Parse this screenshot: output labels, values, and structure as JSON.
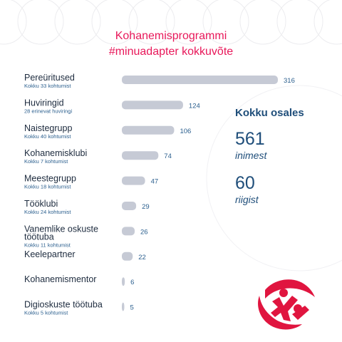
{
  "title": {
    "line1": "Kohanemisprogrammi",
    "line2": "#minuadapter kokkuvõte"
  },
  "summary": {
    "heading": "Kokku osales",
    "stats": [
      {
        "value": "561",
        "label": "inimest"
      },
      {
        "value": "60",
        "label": "riigist"
      }
    ]
  },
  "colors": {
    "title": "#e8185a",
    "bar": "#c6cad5",
    "value_text": "#2b5f8e",
    "label_text": "#1d2b3e",
    "summary_text": "#1f4e7a",
    "logo": "#e0153f"
  },
  "logo": {
    "icon": "two-people-circle-logo-icon"
  },
  "chart_data": {
    "type": "bar",
    "orientation": "horizontal",
    "title": "Kohanemisprogrammi #minuadapter kokkuvõte",
    "xlim": [
      0,
      316
    ],
    "grid": false,
    "categories": [
      "Pereüritused",
      "Huviringid",
      "Naistegrupp",
      "Kohanemisklubi",
      "Meestegrupp",
      "Tööklubi",
      "Vanemlike oskuste töötuba",
      "Keelepartner",
      "Kohanemismentor",
      "Digioskuste töötuba"
    ],
    "name_lines": [
      [
        "Pereüritused"
      ],
      [
        "Huviringid"
      ],
      [
        "Naistegrupp"
      ],
      [
        "Kohanemisklubi"
      ],
      [
        "Meestegrupp"
      ],
      [
        "Tööklubi"
      ],
      [
        "Vanemlike oskuste",
        "töötuba"
      ],
      [
        "Keelepartner"
      ],
      [
        "Kohanemismentor"
      ],
      [
        "Digioskuste töötuba"
      ]
    ],
    "subtitles": [
      "Kokku 33 kohtumist",
      "28 erinevat huviringi",
      "Kokku 40 kohtumist",
      "Kokku 7 kohtumist",
      "Kokku 18 kohtumist",
      "Kokku 24 kohtumist",
      "Kokku 11 kohtumist",
      "",
      "",
      "Kokku 5 kohtumist"
    ],
    "values": [
      316,
      124,
      106,
      74,
      47,
      29,
      26,
      22,
      6,
      5
    ]
  }
}
